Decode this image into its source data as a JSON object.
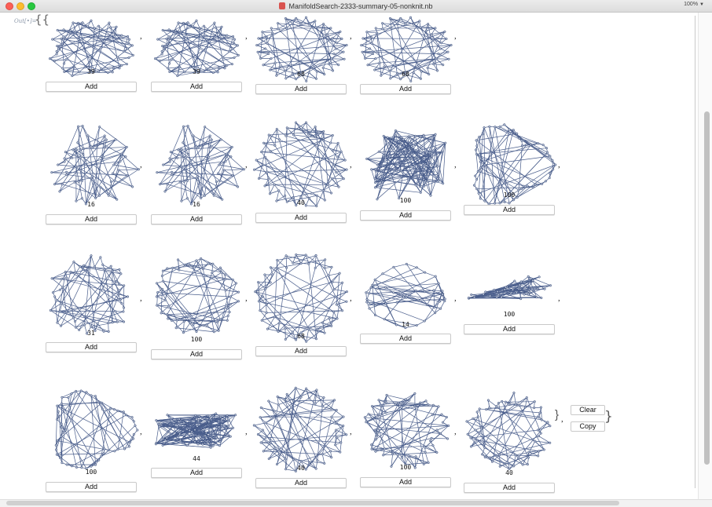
{
  "window": {
    "title": "ManifoldSearch-2333-summary-05-nonknit.nb",
    "zoom": "100%"
  },
  "notebook": {
    "cell_label": "Out[•]=",
    "open_brace": "{{",
    "inner_close": "}",
    "outer_close": "}",
    "separator": ",",
    "add_label": "Add",
    "clear_label": "Clear",
    "copy_label": "Copy"
  },
  "results": [
    {
      "count": "39"
    },
    {
      "count": "39"
    },
    {
      "count": "68"
    },
    {
      "count": "68"
    },
    {
      "count": "16"
    },
    {
      "count": "16"
    },
    {
      "count": "40"
    },
    {
      "count": "100"
    },
    {
      "count": "100"
    },
    {
      "count": "31"
    },
    {
      "count": "100"
    },
    {
      "count": "68"
    },
    {
      "count": "14"
    },
    {
      "count": "100"
    },
    {
      "count": "100"
    },
    {
      "count": "44"
    },
    {
      "count": "40"
    },
    {
      "count": "100"
    },
    {
      "count": "40"
    }
  ],
  "colors": {
    "edge": "#4a5e8c",
    "node_fill": "#b4bfd6",
    "node_stroke": "#2f426d",
    "close_button": "#fc5f57",
    "minimize_button": "#fdbc2e",
    "maximize_button": "#28c840"
  }
}
